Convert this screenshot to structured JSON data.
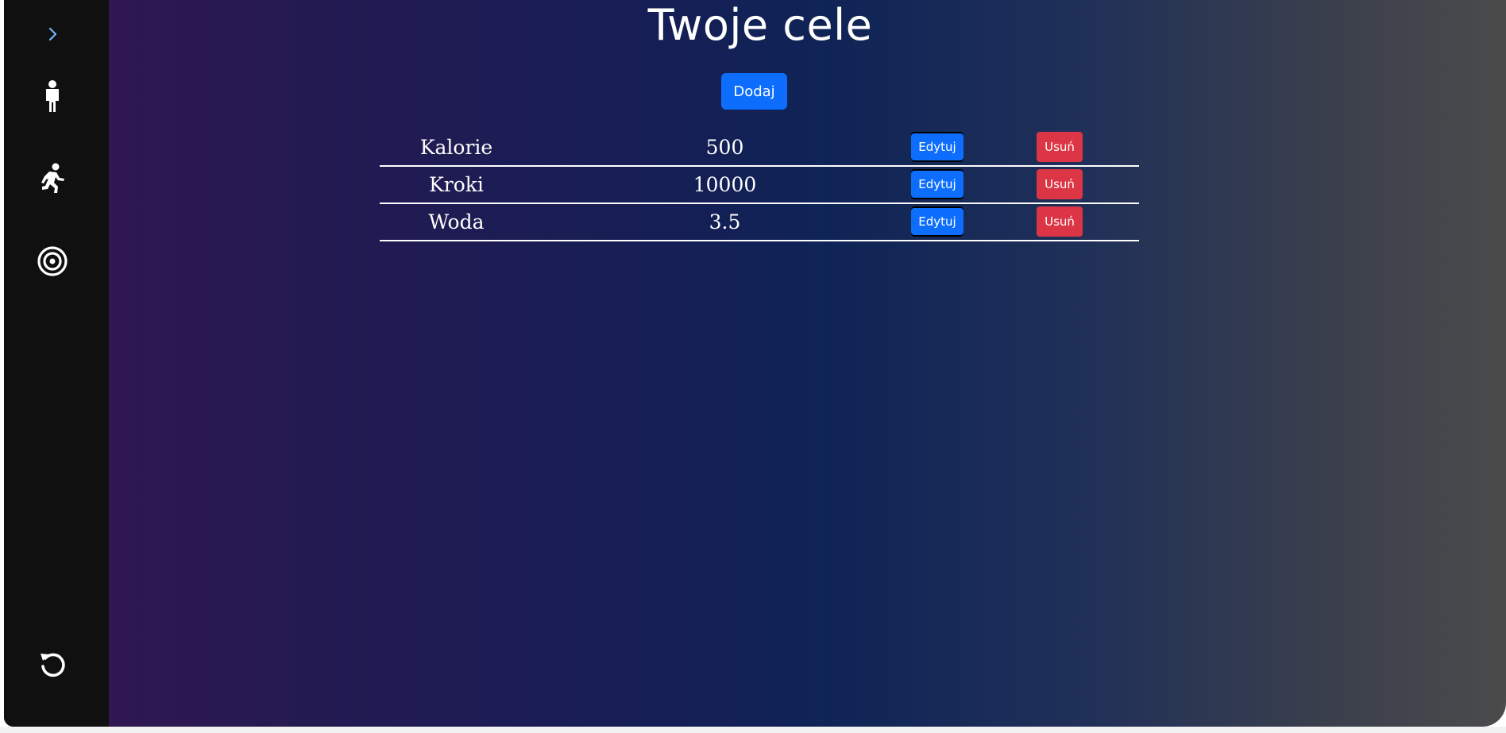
{
  "sidebar": {
    "items": [
      {
        "icon": "chevron-right-icon",
        "color": "#6fb6ff"
      },
      {
        "icon": "person-icon",
        "color": "#ffffff"
      },
      {
        "icon": "running-person-icon",
        "color": "#ffffff"
      },
      {
        "icon": "target-icon",
        "color": "#ffffff"
      },
      {
        "icon": "undo-icon",
        "color": "#ffffff"
      }
    ]
  },
  "main": {
    "title": "Twoje cele",
    "add_label": "Dodaj",
    "goals": [
      {
        "name": "Kalorie",
        "value": "500",
        "edit_label": "Edytuj",
        "delete_label": "Usuń"
      },
      {
        "name": "Kroki",
        "value": "10000",
        "edit_label": "Edytuj",
        "delete_label": "Usuń"
      },
      {
        "name": "Woda",
        "value": "3.5",
        "edit_label": "Edytuj",
        "delete_label": "Usuń"
      }
    ]
  },
  "colors": {
    "sidebar_bg": "#101010",
    "primary_button": "#0d6efd",
    "danger_button": "#dc3545",
    "accent_chevron": "#6fb6ff"
  }
}
